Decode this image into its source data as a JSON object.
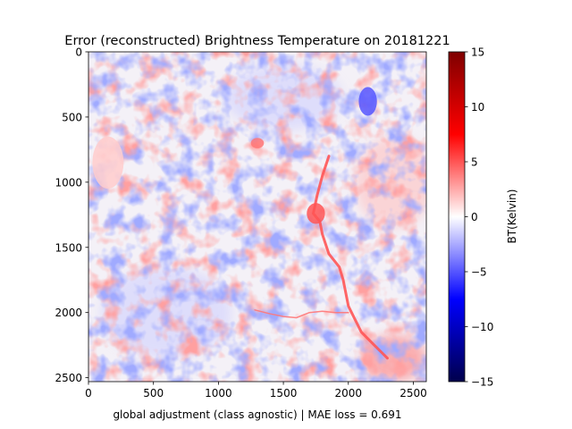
{
  "chart_data": {
    "type": "heatmap",
    "title": "Error (reconstructed) Brightness Temperature on 20181221",
    "xlabel": "global adjustment (class agnostic) | MAE loss = 0.691",
    "ylabel": "",
    "xlim": [
      0,
      2600
    ],
    "ylim": [
      2530,
      0
    ],
    "y_inverted": true,
    "xticks": [
      0,
      500,
      1000,
      1500,
      2000,
      2500
    ],
    "yticks": [
      0,
      500,
      1000,
      1500,
      2000,
      2500
    ],
    "grid": false,
    "colormap": "seismic",
    "colorbar": {
      "label": "BT(Kelvin)",
      "vmin": -15,
      "vmax": 15,
      "ticks": [
        -15,
        -10,
        -5,
        0,
        5,
        10,
        15
      ],
      "stops": [
        "#00004c",
        "#0000ff",
        "#ffffff",
        "#ff0000",
        "#7f0000"
      ]
    },
    "background_error_range_k": [
      -2,
      2
    ],
    "features": [
      {
        "feature": "warm river channel",
        "sign": "positive",
        "approx_error_k": 5,
        "path": [
          [
            1850,
            800
          ],
          [
            1800,
            950
          ],
          [
            1760,
            1100
          ],
          [
            1730,
            1240
          ],
          [
            1780,
            1300
          ],
          [
            1800,
            1400
          ],
          [
            1850,
            1550
          ],
          [
            1930,
            1650
          ],
          [
            1960,
            1750
          ],
          [
            1980,
            1850
          ],
          [
            2000,
            1950
          ],
          [
            2050,
            2050
          ],
          [
            2100,
            2150
          ],
          [
            2200,
            2250
          ],
          [
            2300,
            2350
          ]
        ]
      },
      {
        "feature": "warm lake (large)",
        "sign": "positive",
        "approx_error_k": 5,
        "center": [
          1750,
          1240
        ],
        "radius_x": 70,
        "radius_y": 80
      },
      {
        "feature": "warm tributary",
        "sign": "positive",
        "approx_error_k": 4,
        "path": [
          [
            1280,
            1980
          ],
          [
            1400,
            2010
          ],
          [
            1500,
            2030
          ],
          [
            1600,
            2040
          ],
          [
            1700,
            2000
          ],
          [
            1800,
            1990
          ],
          [
            1900,
            2000
          ],
          [
            2000,
            2000
          ]
        ]
      },
      {
        "feature": "warm estuary",
        "sign": "positive",
        "approx_error_k": 4,
        "center": [
          2350,
          2350
        ],
        "radius_x": 250,
        "radius_y": 180
      },
      {
        "feature": "warm patch (east)",
        "sign": "positive",
        "approx_error_k": 2,
        "center": [
          2350,
          1000
        ],
        "radius_x": 300,
        "radius_y": 350
      },
      {
        "feature": "warm patch (northwest)",
        "sign": "positive",
        "approx_error_k": 1.5,
        "center": [
          150,
          850
        ],
        "radius_x": 120,
        "radius_y": 200
      },
      {
        "feature": "warm speckle",
        "sign": "positive",
        "approx_error_k": 4,
        "center": [
          1300,
          700
        ],
        "radius_x": 50,
        "radius_y": 40
      },
      {
        "feature": "cold patch (northeast)",
        "sign": "negative",
        "approx_error_k": -5,
        "center": [
          2150,
          380
        ],
        "radius_x": 70,
        "radius_y": 110
      },
      {
        "feature": "cool region (southwest)",
        "sign": "negative",
        "approx_error_k": -1.5,
        "center": [
          600,
          2000
        ],
        "radius_x": 500,
        "radius_y": 350
      },
      {
        "feature": "cool region (north)",
        "sign": "negative",
        "approx_error_k": -1.5,
        "center": [
          1500,
          350
        ],
        "radius_x": 450,
        "radius_y": 250
      }
    ]
  }
}
